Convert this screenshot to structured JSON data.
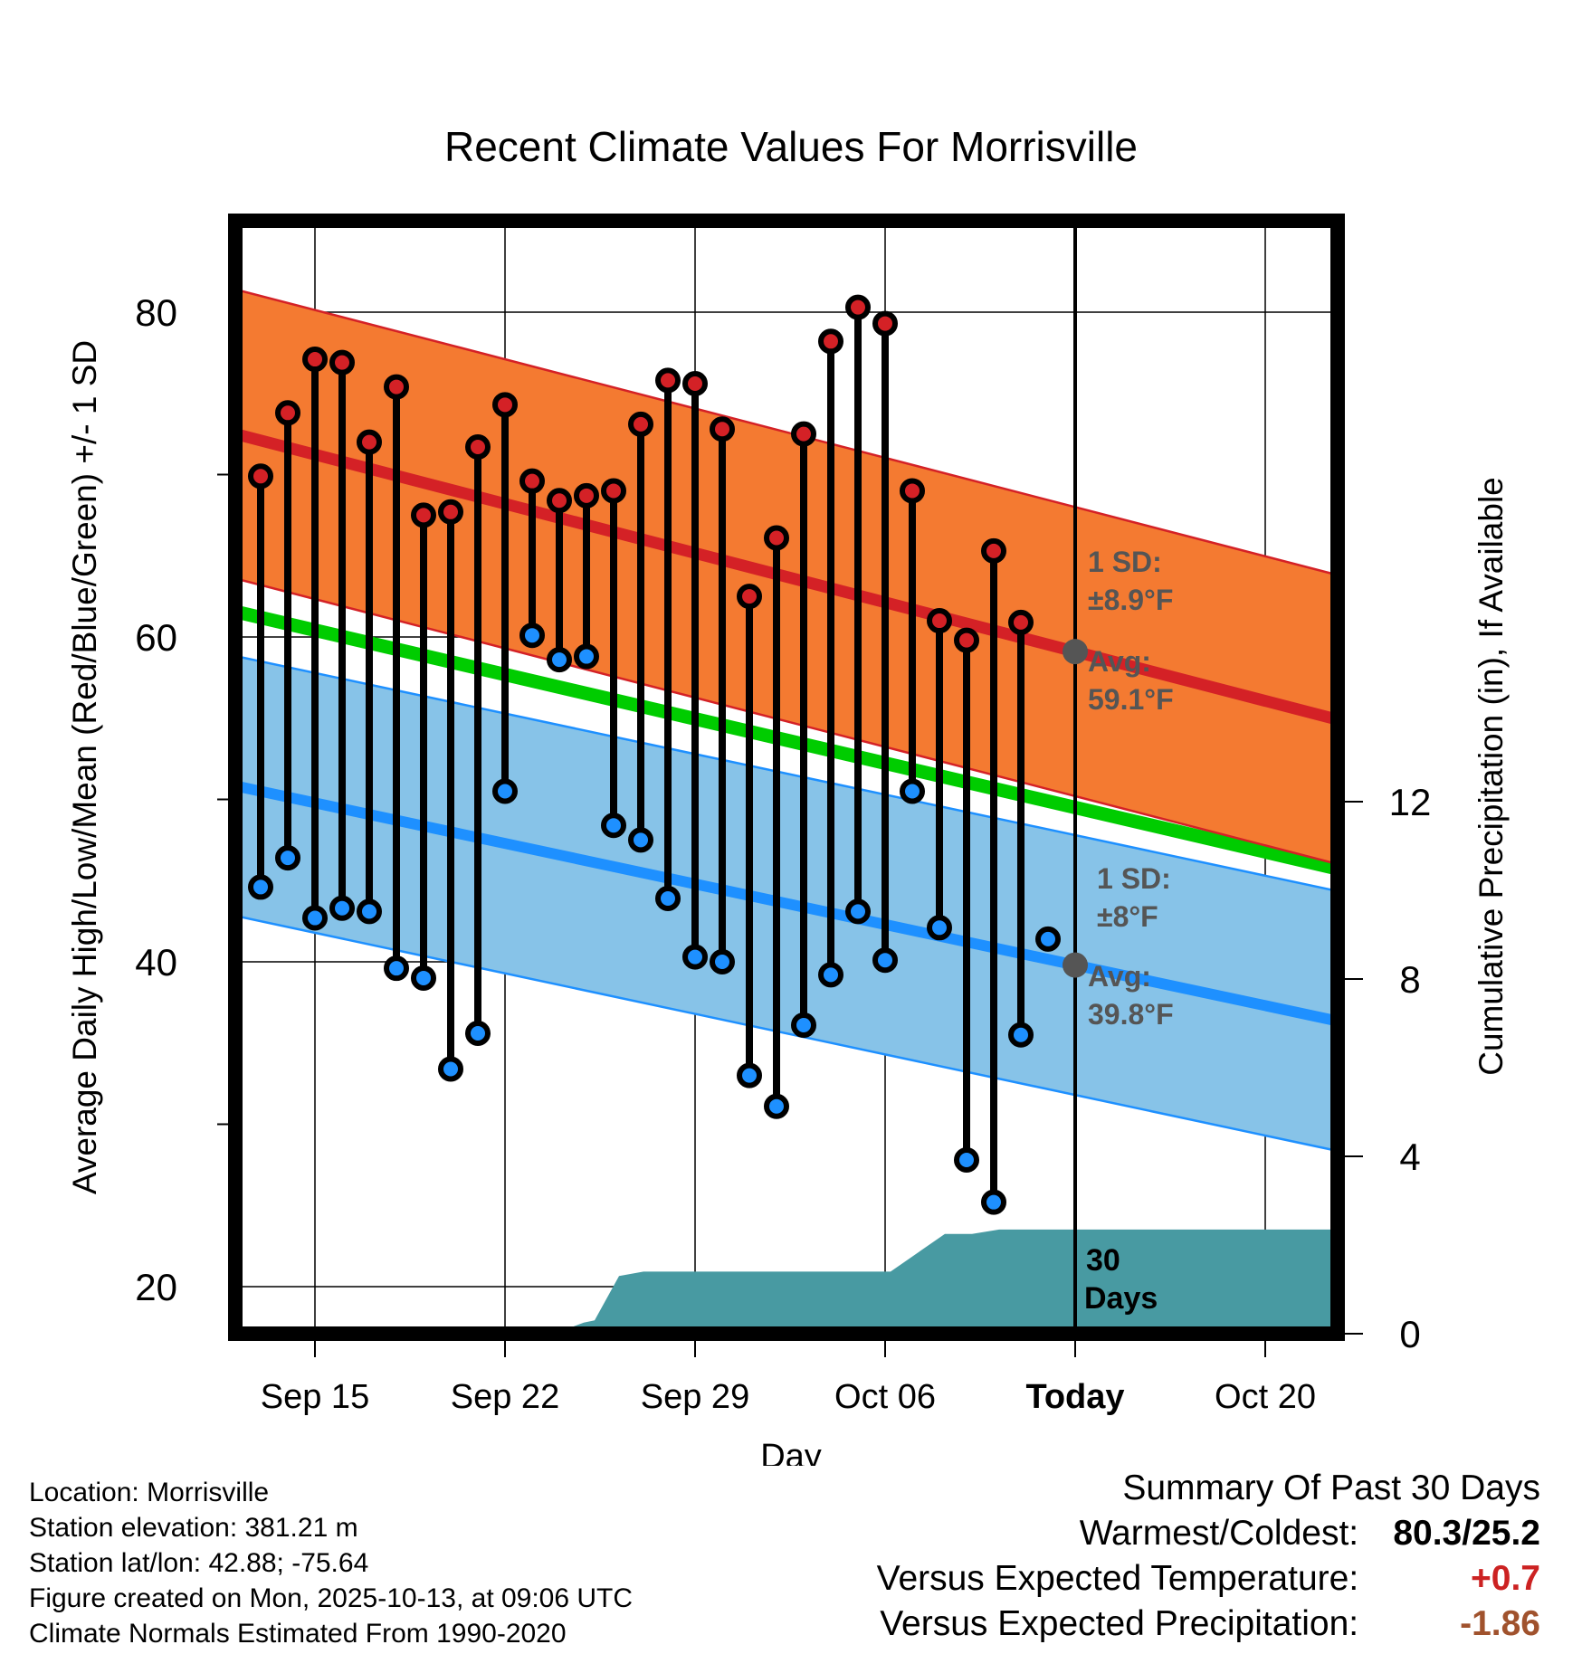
{
  "title": "Recent Climate Values For Morrisville",
  "chart_data": {
    "type": "line",
    "title": "Recent Climate Values For Morrisville",
    "xlabel": "Day",
    "ylabel": "Average Daily High/Low/Mean (Red/Blue/Green) +/- 1 SD",
    "y2label": "Cumulative Precipitation (in), If Available",
    "ylim": [
      17.7,
      86
    ],
    "y2lim": [
      0,
      18
    ],
    "x_tick_labels": [
      "Sep 15",
      "Sep 22",
      "Sep 29",
      "Oct 06",
      "Today",
      "Oct 20"
    ],
    "y_ticks": [
      20,
      40,
      60,
      80
    ],
    "y2_ticks": [
      0,
      4,
      8,
      12
    ],
    "dates": [
      "Sep 13",
      "Sep 14",
      "Sep 15",
      "Sep 16",
      "Sep 17",
      "Sep 18",
      "Sep 19",
      "Sep 20",
      "Sep 21",
      "Sep 22",
      "Sep 23",
      "Sep 24",
      "Sep 25",
      "Sep 26",
      "Sep 27",
      "Sep 28",
      "Sep 29",
      "Sep 30",
      "Oct 01",
      "Oct 02",
      "Oct 03",
      "Oct 04",
      "Oct 05",
      "Oct 06",
      "Oct 07",
      "Oct 08",
      "Oct 09",
      "Oct 10",
      "Oct 11",
      "Oct 12"
    ],
    "daily_high": [
      69.9,
      73.8,
      77.1,
      76.9,
      72.0,
      75.4,
      67.5,
      67.7,
      71.7,
      74.3,
      69.6,
      68.4,
      68.7,
      69.0,
      73.1,
      75.8,
      75.6,
      72.8,
      62.5,
      66.1,
      72.5,
      78.2,
      80.3,
      79.3,
      69.0,
      61.0,
      59.8,
      65.3,
      60.9,
      null
    ],
    "daily_low": [
      44.6,
      46.4,
      42.7,
      43.3,
      43.1,
      39.6,
      39.0,
      33.4,
      35.6,
      50.5,
      60.1,
      58.6,
      58.8,
      48.4,
      47.5,
      43.9,
      40.3,
      40.0,
      33.0,
      31.1,
      36.1,
      39.2,
      43.1,
      40.1,
      50.5,
      42.1,
      27.8,
      25.2,
      35.5,
      41.4
    ],
    "normal_high": {
      "name": "Avg high",
      "start": 72.1,
      "today": 59.1,
      "end": 55.0
    },
    "normal_high_sd": 8.9,
    "normal_low": {
      "name": "Avg low",
      "start": 50.5,
      "today": 39.8,
      "end": 36.5
    },
    "normal_low_sd": 8.0,
    "normal_mean": {
      "name": "Avg mean",
      "start": 61.2,
      "today": 49.5,
      "end": 45.7
    },
    "precip_cumulative": [
      {
        "day": 0,
        "value": 0
      },
      {
        "day": 10.8,
        "value": 0
      },
      {
        "day": 11.9,
        "value": 0.25
      },
      {
        "day": 12.3,
        "value": 0.3
      },
      {
        "day": 13.2,
        "value": 1.3
      },
      {
        "day": 14.1,
        "value": 1.4
      },
      {
        "day": 23.2,
        "value": 1.4
      },
      {
        "day": 25.2,
        "value": 2.25
      },
      {
        "day": 26.2,
        "value": 2.25
      },
      {
        "day": 27.2,
        "value": 2.35
      },
      {
        "day": 40.7,
        "value": 2.35
      }
    ],
    "annotations": {
      "high_sd": "1 SD:",
      "high_sd_value": "±8.9°F",
      "high_avg": "Avg:",
      "high_avg_value": "59.1°F",
      "low_sd": "1 SD:",
      "low_sd_value": "±8°F",
      "low_avg": "Avg:",
      "low_avg_value": "39.8°F",
      "precip_period": "30",
      "precip_period_unit": "Days"
    },
    "colors": {
      "high": "#d42126",
      "high_band": "#f47a31",
      "low": "#1e90ff",
      "low_band": "#87c3e8",
      "mean": "#00cc00",
      "precip": "#489aa2",
      "annotation": "#555555"
    }
  },
  "footer": {
    "location": "Location: Morrisville",
    "elevation": "Station elevation: 381.21 m",
    "latlon": "Station lat/lon: 42.88; -75.64",
    "created": "Figure created on Mon, 2025-10-13, at 09:06 UTC",
    "normals": "Climate Normals Estimated From 1990-2020"
  },
  "summary": {
    "heading": "Summary Of Past 30 Days",
    "warmest_label": "Warmest/Coldest:",
    "warmest_value": "80.3/25.2",
    "temp_label": "Versus Expected Temperature:",
    "temp_value": "+0.7",
    "temp_color": "#cc2222",
    "precip_label": "Versus Expected Precipitation:",
    "precip_value": "-1.86",
    "precip_color": "#a0522d"
  }
}
